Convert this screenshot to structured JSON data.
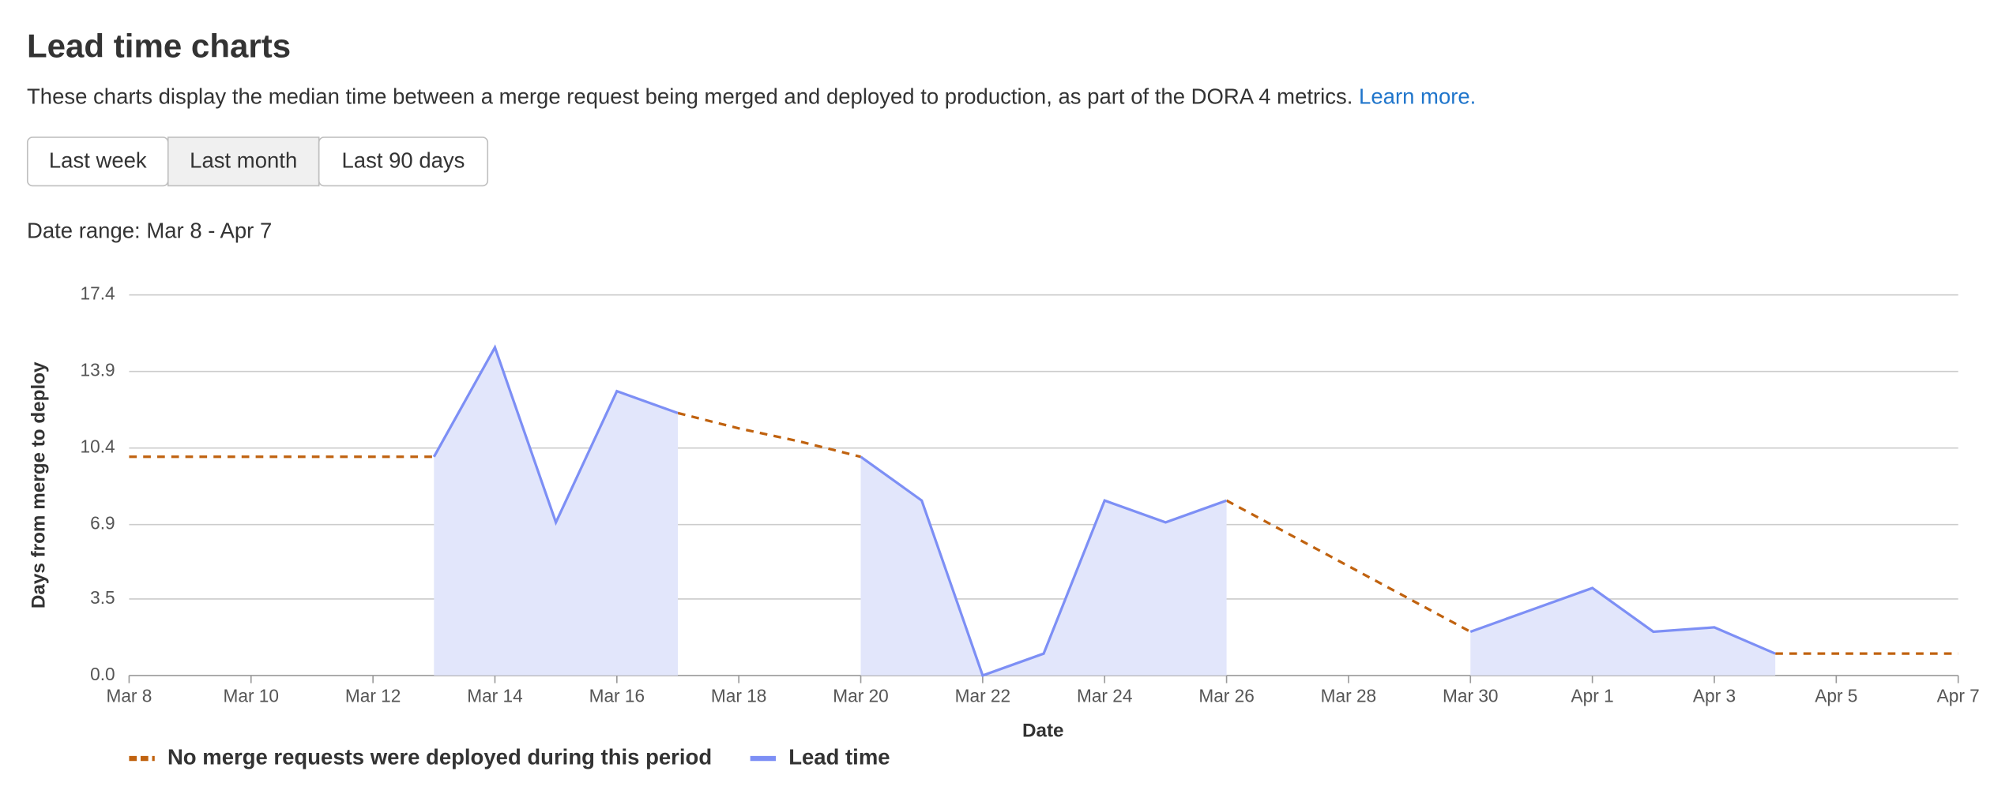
{
  "header": {
    "title": "Lead time charts",
    "description": "These charts display the median time between a merge request being merged and deployed to production, as part of the DORA 4 metrics.",
    "link": "Learn more.",
    "buttons": [
      "Last week",
      "Last month",
      "Last 90 days"
    ],
    "selected_button": 1,
    "date_range": "Date range: Mar 8 - Apr 7"
  },
  "chart_data": {
    "type": "line",
    "xlabel": "Date",
    "ylabel": "Days from merge to deploy",
    "categories": [
      "Mar 8",
      null,
      "Mar 10",
      null,
      "Mar 12",
      null,
      "Mar 14",
      null,
      "Mar 16",
      null,
      "Mar 18",
      null,
      "Mar 20",
      null,
      "Mar 22",
      null,
      "Mar 24",
      null,
      "Mar 26",
      null,
      "Mar 28",
      null,
      "Mar 30",
      null,
      "Apr 1",
      null,
      "Apr 3",
      null,
      "Apr 5",
      null,
      "Apr 7"
    ],
    "series": [
      {
        "name": "No merge requests were deployed during this period",
        "color": "#c0620f",
        "style": "dashed",
        "values": [
          10,
          10,
          10,
          10,
          10,
          10,
          null,
          null,
          null,
          12,
          11.3,
          10.7,
          10,
          null,
          null,
          null,
          null,
          null,
          8,
          6.5,
          5,
          3.5,
          2,
          null,
          null,
          null,
          null,
          1,
          1,
          1,
          1
        ]
      },
      {
        "name": "Lead time",
        "color": "#7d8ff5",
        "style": "solid",
        "fill": "#e2e6fb",
        "values": [
          null,
          null,
          null,
          null,
          null,
          10,
          15,
          7,
          13,
          12,
          null,
          null,
          10,
          8,
          0,
          1,
          8,
          7,
          8,
          null,
          null,
          null,
          2,
          3,
          4,
          2,
          2.2,
          1,
          null,
          null,
          null
        ]
      }
    ],
    "ylim": [
      0,
      17.4
    ],
    "yticks": [
      {
        "value": 0,
        "label": "0.0"
      },
      3.5,
      6.9,
      10.4,
      13.9,
      17.4
    ],
    "grid": true
  }
}
